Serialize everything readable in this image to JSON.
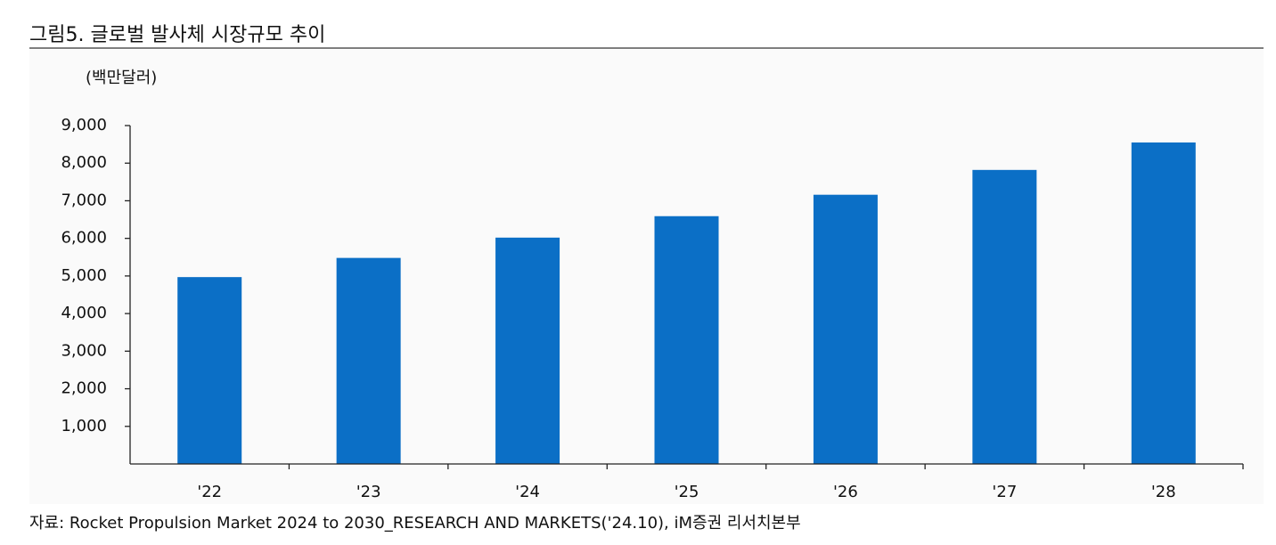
{
  "chart_data": {
    "type": "bar",
    "title": "그림5. 글로벌 발사체 시장규모 추이",
    "unit_label": "(백만달러)",
    "source": "자료: Rocket Propulsion Market 2024 to 2030_RESEARCH AND MARKETS('24.10), iM증권 리서치본부",
    "categories": [
      "'22",
      "'23",
      "'24",
      "'25",
      "'26",
      "'27",
      "'28"
    ],
    "values": [
      4970,
      5480,
      6020,
      6590,
      7160,
      7820,
      8550
    ],
    "color": "#0b6fc6",
    "ylim": [
      0,
      9000
    ],
    "yticks": [
      {
        "value": 1000,
        "label": "1,000"
      },
      {
        "value": 2000,
        "label": "2,000"
      },
      {
        "value": 3000,
        "label": "3,000"
      },
      {
        "value": 4000,
        "label": "4,000"
      },
      {
        "value": 5000,
        "label": "5,000"
      },
      {
        "value": 6000,
        "label": "6,000"
      },
      {
        "value": 7000,
        "label": "7,000"
      },
      {
        "value": 8000,
        "label": "8,000"
      },
      {
        "value": 9000,
        "label": "9,000"
      }
    ],
    "grid": false
  }
}
